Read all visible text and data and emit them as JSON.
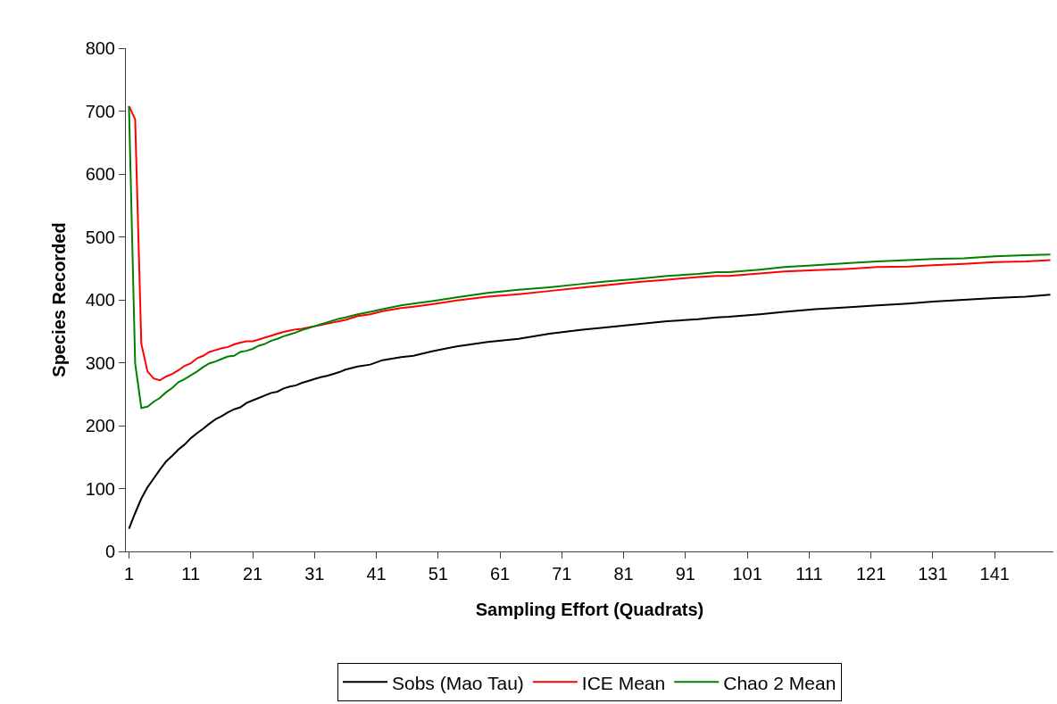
{
  "chart_data": {
    "type": "line",
    "xlabel": "Sampling Effort (Quadrats)",
    "ylabel": "Species Recorded",
    "xlim": [
      0.5,
      150.5
    ],
    "xticks": [
      1,
      11,
      21,
      31,
      41,
      51,
      61,
      71,
      81,
      91,
      101,
      111,
      121,
      131,
      141
    ],
    "ylim": [
      0,
      800
    ],
    "yticks": [
      0,
      100,
      200,
      300,
      400,
      500,
      600,
      700,
      800
    ],
    "legend": "bottom",
    "line_style": "solid",
    "x": [
      1,
      2,
      3,
      4,
      5,
      6,
      7,
      8,
      9,
      10,
      11,
      12,
      13,
      14,
      15,
      16,
      17,
      18,
      19,
      20,
      21,
      22,
      23,
      24,
      25,
      26,
      27,
      28,
      29,
      30,
      31,
      32,
      33,
      34,
      35,
      36,
      38,
      40,
      42,
      45,
      47,
      50,
      54,
      59,
      64,
      69,
      74,
      78,
      83,
      88,
      93,
      96,
      98,
      103,
      107,
      112,
      117,
      122,
      127,
      131,
      136,
      141,
      146,
      150
    ],
    "series": [
      {
        "name": "Sobs (Mao Tau)",
        "color": "#000000",
        "values": [
          36,
          61,
          84,
          102,
          116,
          130,
          143,
          152,
          162,
          170,
          180,
          188,
          195,
          203,
          210,
          215,
          221,
          226,
          229,
          236,
          240,
          244,
          248,
          252,
          254,
          259,
          262,
          264,
          268,
          271,
          274,
          277,
          279,
          282,
          285,
          289,
          294,
          297,
          304,
          309,
          311,
          318,
          326,
          333,
          338,
          346,
          352,
          356,
          361,
          366,
          369,
          372,
          373,
          377,
          381,
          385,
          388,
          391,
          394,
          397,
          400,
          403,
          405,
          408
        ]
      },
      {
        "name": "ICE Mean",
        "color": "#ff0000",
        "values": [
          708,
          687,
          330,
          286,
          275,
          272,
          278,
          282,
          288,
          295,
          299,
          307,
          311,
          317,
          320,
          323,
          325,
          329,
          332,
          334,
          334,
          337,
          340,
          343,
          346,
          349,
          351,
          353,
          354,
          356,
          358,
          360,
          362,
          364,
          366,
          368,
          374,
          377,
          382,
          387,
          389,
          393,
          399,
          405,
          409,
          414,
          419,
          423,
          428,
          432,
          436,
          438,
          438,
          442,
          445,
          447,
          449,
          452,
          453,
          455,
          457,
          460,
          461,
          463
        ]
      },
      {
        "name": "Chao 2 Mean",
        "color": "#008000",
        "values": [
          708,
          299,
          228,
          230,
          238,
          244,
          253,
          260,
          269,
          274,
          280,
          286,
          293,
          299,
          302,
          306,
          310,
          311,
          317,
          319,
          322,
          327,
          330,
          335,
          338,
          342,
          345,
          348,
          352,
          355,
          358,
          361,
          364,
          367,
          370,
          372,
          377,
          381,
          385,
          391,
          394,
          398,
          404,
          411,
          416,
          420,
          425,
          429,
          433,
          438,
          441,
          444,
          444,
          448,
          452,
          455,
          458,
          461,
          463,
          465,
          466,
          469,
          471,
          472
        ]
      }
    ]
  }
}
